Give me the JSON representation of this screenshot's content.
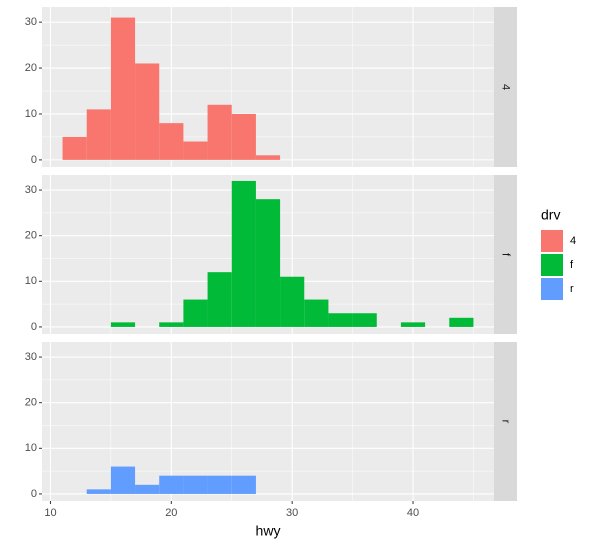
{
  "chart_data": {
    "type": "histogram",
    "x_label": "hwy",
    "legend_title": "drv",
    "bins": [
      11,
      13,
      15,
      17,
      19,
      21,
      23,
      25,
      27,
      29,
      31,
      33,
      35,
      37,
      39,
      41,
      43,
      45
    ],
    "series": [
      {
        "name": "4",
        "color": "#f8766d",
        "values": [
          5,
          11,
          31,
          21,
          8,
          4,
          12,
          10,
          1,
          0,
          0,
          0,
          0,
          0,
          0,
          0,
          0
        ]
      },
      {
        "name": "f",
        "color": "#00ba38",
        "values": [
          0,
          0,
          1,
          0,
          1,
          6,
          12,
          32,
          28,
          11,
          6,
          3,
          3,
          0,
          1,
          0,
          2
        ]
      },
      {
        "name": "r",
        "color": "#619cff",
        "values": [
          0,
          1,
          6,
          2,
          4,
          4,
          4,
          4,
          0,
          0,
          0,
          0,
          0,
          0,
          0,
          0,
          0
        ]
      }
    ],
    "xlim": [
      9.3,
      46.7
    ],
    "xticks": [
      10,
      20,
      30,
      40
    ],
    "ylim": [
      -1.55,
      33.3
    ],
    "yticks": [
      0,
      10,
      20,
      30
    ],
    "grid": true,
    "legend": "right",
    "facets": "rows"
  }
}
